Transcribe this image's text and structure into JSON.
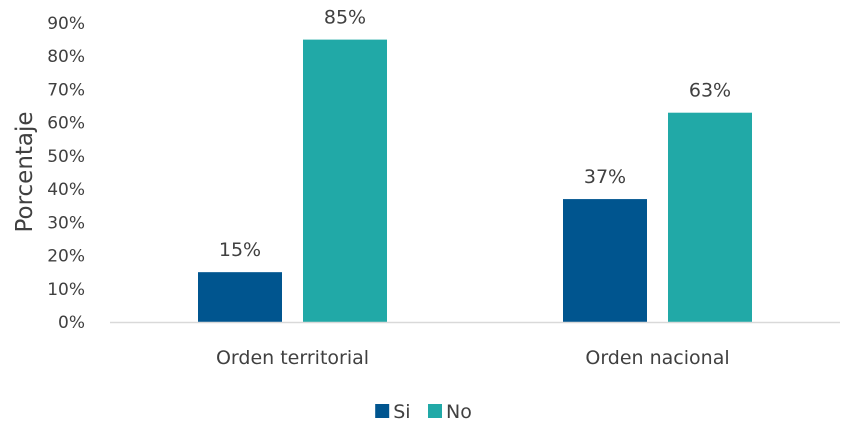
{
  "chart_data": {
    "type": "bar",
    "title": "",
    "xlabel": "",
    "ylabel": "Porcentaje",
    "categories": [
      "Orden territorial",
      "Orden nacional"
    ],
    "series": [
      {
        "name": "Si",
        "color": "#00558F",
        "values": [
          15,
          37
        ],
        "labels": [
          "15%",
          "37%"
        ]
      },
      {
        "name": "No",
        "color": "#21A9A7",
        "values": [
          85,
          63
        ],
        "labels": [
          "85%",
          "63%"
        ]
      }
    ],
    "ylim": [
      0,
      90
    ],
    "yticks": [
      0,
      10,
      20,
      30,
      40,
      50,
      60,
      70,
      80,
      90
    ],
    "ytick_labels": [
      "0%",
      "10%",
      "20%",
      "30%",
      "40%",
      "50%",
      "60%",
      "70%",
      "80%",
      "90%"
    ],
    "grid": false,
    "legend_position": "bottom"
  }
}
